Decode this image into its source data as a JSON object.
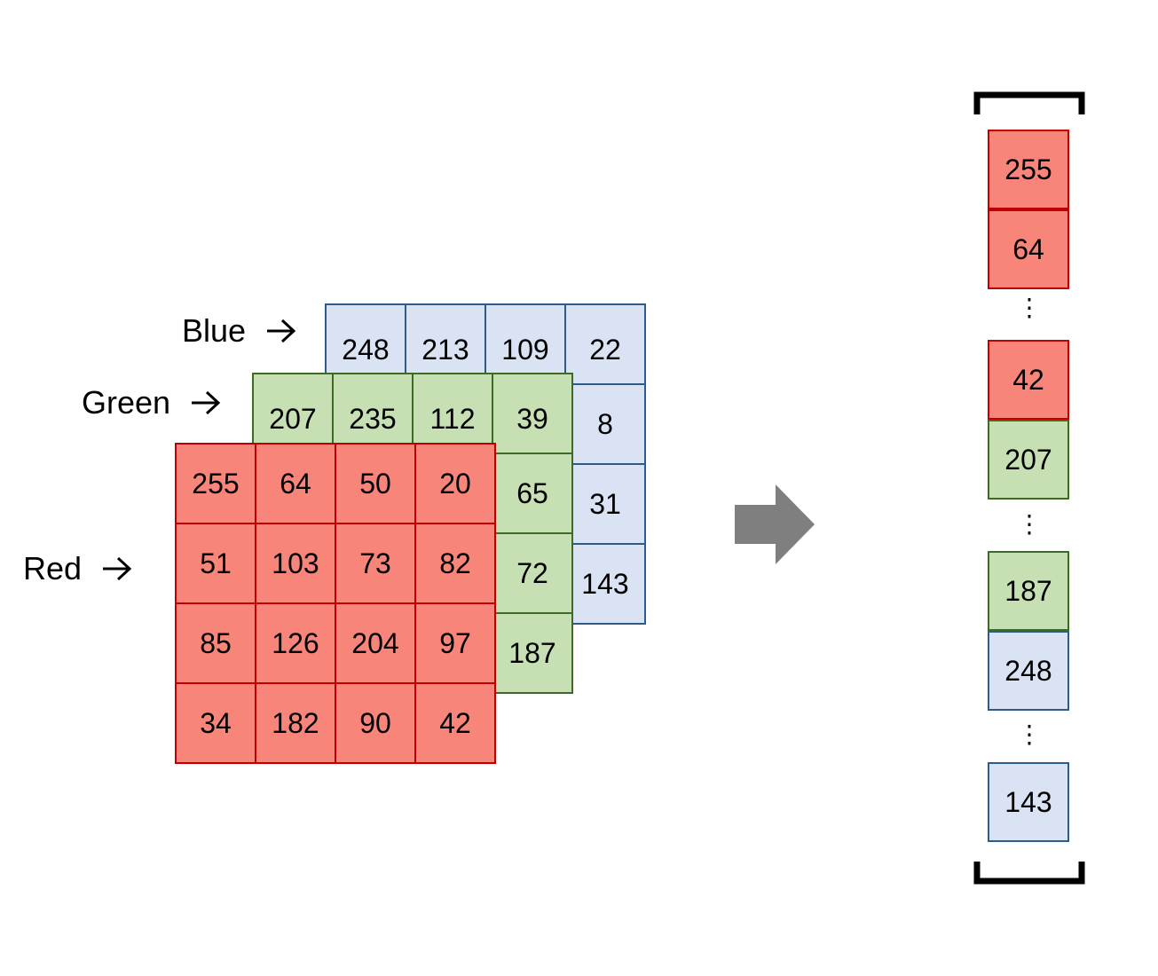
{
  "labels": {
    "blue": "Blue",
    "green": "Green",
    "red": "Red"
  },
  "arrow_glyph": "arrow-right-icon",
  "channels": {
    "blue": {
      "color": "#dae3f3",
      "border": "#2e5c8a",
      "cells": [
        "248",
        "213",
        "109",
        "22",
        "",
        "",
        "",
        "8",
        "",
        "",
        "",
        "31",
        "",
        "",
        "",
        "143"
      ]
    },
    "green": {
      "color": "#c6e0b4",
      "border": "#3d6b24",
      "cells": [
        "207",
        "235",
        "112",
        "39",
        "",
        "",
        "",
        "65",
        "",
        "",
        "",
        "72",
        "",
        "",
        "",
        "187"
      ]
    },
    "red": {
      "color": "#f8857a",
      "border": "#c00000",
      "cells": [
        "255",
        "64",
        "50",
        "20",
        "51",
        "103",
        "73",
        "82",
        "85",
        "126",
        "204",
        "97",
        "34",
        "182",
        "90",
        "42"
      ]
    }
  },
  "vector": {
    "items": [
      {
        "value": "255",
        "channel": "red"
      },
      {
        "value": "64",
        "channel": "red"
      },
      {
        "value": "⋮",
        "channel": "dots"
      },
      {
        "value": "42",
        "channel": "red"
      },
      {
        "value": "207",
        "channel": "green"
      },
      {
        "value": "⋮",
        "channel": "dots"
      },
      {
        "value": "187",
        "channel": "green"
      },
      {
        "value": "248",
        "channel": "blue"
      },
      {
        "value": "⋮",
        "channel": "dots"
      },
      {
        "value": "143",
        "channel": "blue"
      }
    ]
  },
  "transform_arrow_color": "#7f7f7f"
}
